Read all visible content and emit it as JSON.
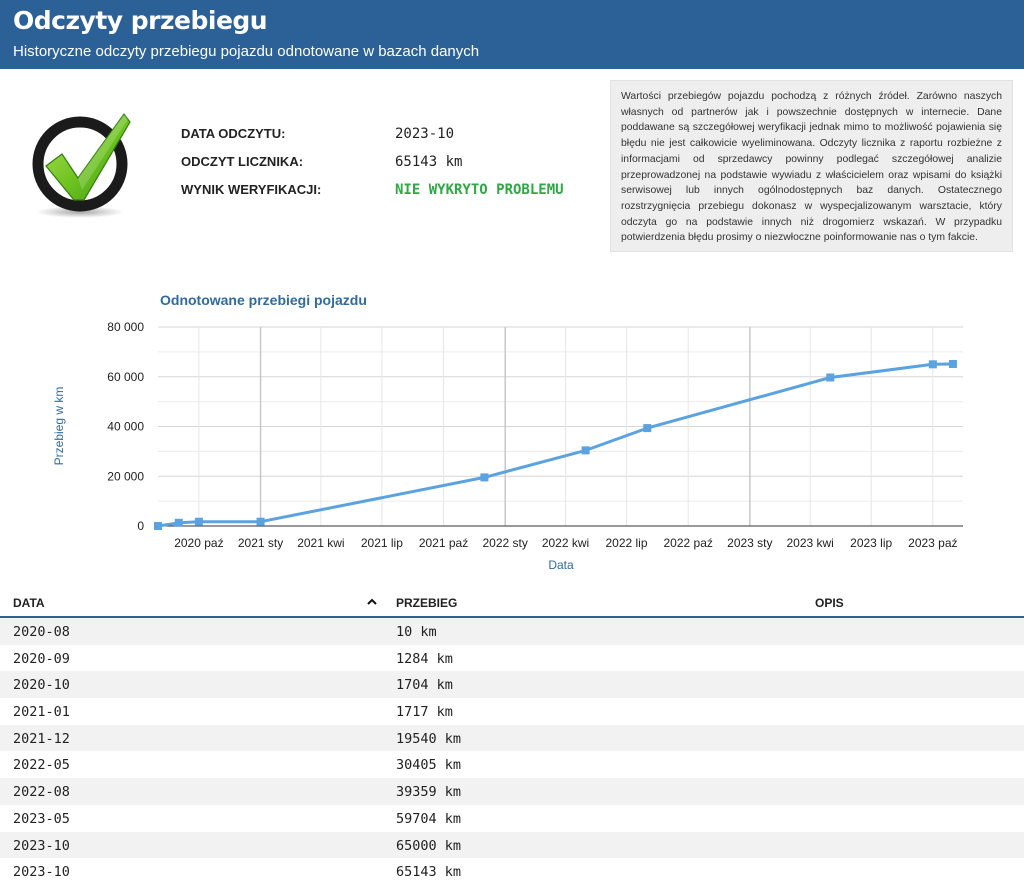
{
  "header": {
    "title": "Odczyty przebiegu",
    "subtitle": "Historyczne odczyty przebiegu pojazdu odnotowane w bazach danych"
  },
  "status_icon": "check-circle-icon",
  "info": {
    "date_label": "DATA ODCZYTU:",
    "date_value": "2023-10",
    "odometer_label": "ODCZYT LICZNIKA:",
    "odometer_value": "65143 km",
    "verification_label": "WYNIK WERYFIKACJI:",
    "verification_value": "NIE WYKRYTO PROBLEMU"
  },
  "colors": {
    "header": "#2b6196",
    "accent": "#2f6aa1",
    "series": "#5aa2e0",
    "ok": "#2ea845"
  },
  "notice": "Wartości przebiegów pojazdu pochodzą z różnych źródeł. Zarówno naszych własnych od partnerów jak i powszechnie dostępnych w internecie. Dane poddawane są szczegółowej weryfikacji jednak mimo to możliwość pojawienia się błędu nie jest całkowicie wyeliminowana. Odczyty licznika z raportu rozbieżne z informacjami od sprzedawcy powinny podlegać szczegółowej analizie przeprowadzonej na podstawie wywiadu z właścicielem oraz wpisami do książki serwisowej lub innych ogólnodostępnych baz danych. Ostatecznego rozstrzygnięcia przebiegu dokonasz w wyspecjalizowanym warsztacie, który odczyta go na podstawie innych niż drogomierz wskazań. W przypadku potwierdzenia błędu prosimy o niezwłoczne poinformowanie nas o tym fakcie.",
  "chart_data": {
    "type": "line",
    "title": "Odnotowane przebiegi pojazdu",
    "xlabel": "Data",
    "ylabel": "Przebieg w km",
    "ylim": [
      0,
      80000
    ],
    "yticks": [
      0,
      20000,
      40000,
      60000,
      80000
    ],
    "ytick_labels": [
      "0",
      "20 000",
      "40 000",
      "60 000",
      "80 000"
    ],
    "xlim": [
      "2020-08-01",
      "2023-11-15"
    ],
    "xticks": [
      "2020-10-01",
      "2021-01-01",
      "2021-04-01",
      "2021-07-01",
      "2021-10-01",
      "2022-01-01",
      "2022-04-01",
      "2022-07-01",
      "2022-10-01",
      "2023-01-01",
      "2023-04-01",
      "2023-07-01",
      "2023-10-01"
    ],
    "xtick_labels": [
      "2020 paź",
      "2021 sty",
      "2021 kwi",
      "2021 lip",
      "2021 paź",
      "2022 sty",
      "2022 kwi",
      "2022 lip",
      "2022 paź",
      "2023 sty",
      "2023 kwi",
      "2023 lip",
      "2023 paź"
    ],
    "grid": true,
    "legend": "none",
    "x": [
      "2020-08-01",
      "2020-09-01",
      "2020-10-01",
      "2021-01-01",
      "2021-12-01",
      "2022-05-01",
      "2022-08-01",
      "2023-05-01",
      "2023-10-01",
      "2023-10-31"
    ],
    "values": [
      10,
      1284,
      1704,
      1717,
      19540,
      30405,
      39359,
      59704,
      65000,
      65143
    ]
  },
  "table": {
    "col_date": "DATA",
    "col_mileage": "PRZEBIEG",
    "col_desc": "OPIS",
    "sort_icon": "chevron-up-icon",
    "rows": [
      {
        "date": "2020-08",
        "mileage": "10 km",
        "desc": ""
      },
      {
        "date": "2020-09",
        "mileage": "1284 km",
        "desc": ""
      },
      {
        "date": "2020-10",
        "mileage": "1704 km",
        "desc": ""
      },
      {
        "date": "2021-01",
        "mileage": "1717 km",
        "desc": ""
      },
      {
        "date": "2021-12",
        "mileage": "19540 km",
        "desc": ""
      },
      {
        "date": "2022-05",
        "mileage": "30405 km",
        "desc": ""
      },
      {
        "date": "2022-08",
        "mileage": "39359 km",
        "desc": ""
      },
      {
        "date": "2023-05",
        "mileage": "59704 km",
        "desc": ""
      },
      {
        "date": "2023-10",
        "mileage": "65000 km",
        "desc": ""
      },
      {
        "date": "2023-10",
        "mileage": "65143 km",
        "desc": ""
      }
    ]
  }
}
